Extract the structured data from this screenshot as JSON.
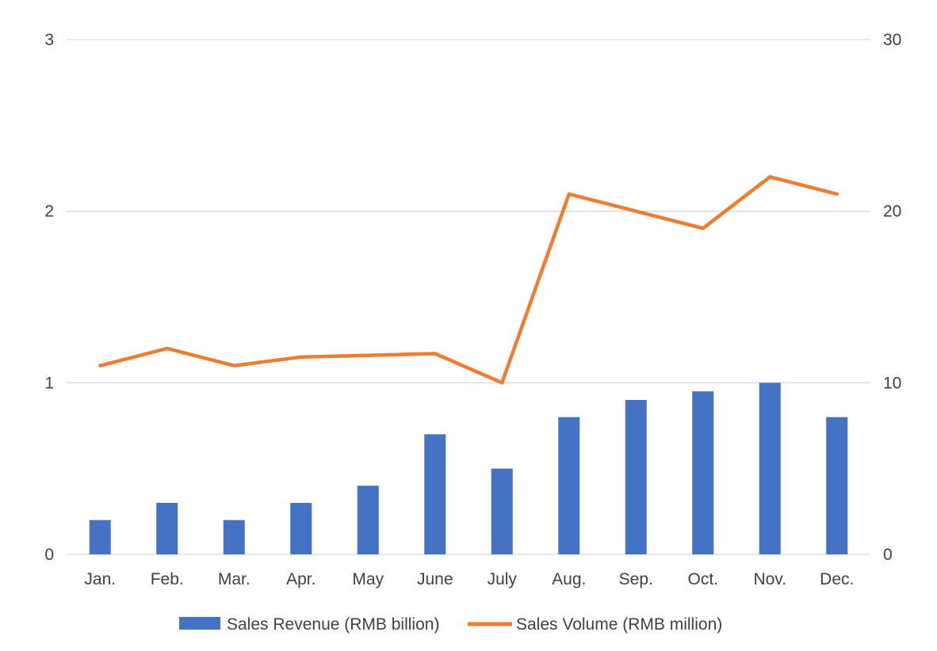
{
  "chart_data": {
    "type": "bar",
    "categories": [
      "Jan.",
      "Feb.",
      "Mar.",
      "Apr.",
      "May",
      "June",
      "July",
      "Aug.",
      "Sep.",
      "Oct.",
      "Nov.",
      "Dec."
    ],
    "series": [
      {
        "name": "Sales Revenue (RMB billion)",
        "type": "bar",
        "axis": "left",
        "color": "#4472c4",
        "values": [
          0.2,
          0.3,
          0.2,
          0.3,
          0.4,
          0.7,
          0.5,
          0.8,
          0.9,
          0.95,
          1.0,
          0.8
        ]
      },
      {
        "name": "Sales Volume (RMB million)",
        "type": "line",
        "axis": "right",
        "color": "#ed7d31",
        "values": [
          11,
          12,
          11,
          11.5,
          11.6,
          11.7,
          10,
          21,
          20,
          19,
          22,
          21
        ]
      }
    ],
    "y_left": {
      "min": 0,
      "max": 3,
      "ticks": [
        "0",
        "1",
        "2",
        "3"
      ]
    },
    "y_right": {
      "min": 0,
      "max": 30,
      "ticks": [
        "0",
        "10",
        "20",
        "30"
      ]
    },
    "grid": true,
    "legend_position": "bottom"
  }
}
